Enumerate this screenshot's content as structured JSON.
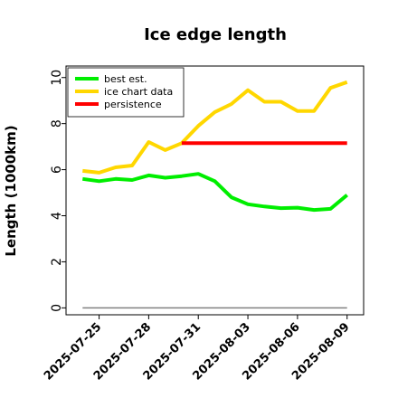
{
  "chart_data": {
    "type": "line",
    "title": "Ice edge length",
    "xlabel": "",
    "ylabel": "Length (1000km)",
    "x": [
      "2025-07-24",
      "2025-07-25",
      "2025-07-26",
      "2025-07-27",
      "2025-07-28",
      "2025-07-29",
      "2025-07-30",
      "2025-07-31",
      "2025-08-01",
      "2025-08-02",
      "2025-08-03",
      "2025-08-04",
      "2025-08-05",
      "2025-08-06",
      "2025-08-07",
      "2025-08-08",
      "2025-08-09"
    ],
    "x_ticks": [
      "2025-07-25",
      "2025-07-28",
      "2025-07-31",
      "2025-08-03",
      "2025-08-06",
      "2025-08-09"
    ],
    "y_ticks": [
      0,
      2,
      4,
      6,
      8,
      10
    ],
    "ylim": [
      -0.3,
      10.5
    ],
    "xlim": [
      "2025-07-23",
      "2025-08-10"
    ],
    "grid": false,
    "legend_position": "top-left",
    "series": [
      {
        "name": "best est.",
        "color": "#00ee00",
        "x": [
          "2025-07-24",
          "2025-07-25",
          "2025-07-26",
          "2025-07-27",
          "2025-07-28",
          "2025-07-29",
          "2025-07-30",
          "2025-07-31",
          "2025-08-01",
          "2025-08-02",
          "2025-08-03",
          "2025-08-04",
          "2025-08-05",
          "2025-08-06",
          "2025-08-07",
          "2025-08-08",
          "2025-08-09"
        ],
        "values": [
          5.6,
          5.5,
          5.6,
          5.55,
          5.75,
          5.65,
          5.72,
          5.82,
          5.5,
          4.8,
          4.5,
          4.4,
          4.33,
          4.35,
          4.25,
          4.3,
          4.9
        ]
      },
      {
        "name": "ice chart data",
        "color": "#ffd700",
        "x": [
          "2025-07-24",
          "2025-07-25",
          "2025-07-26",
          "2025-07-27",
          "2025-07-28",
          "2025-07-29",
          "2025-07-30",
          "2025-07-31",
          "2025-08-01",
          "2025-08-02",
          "2025-08-03",
          "2025-08-04",
          "2025-08-05",
          "2025-08-06",
          "2025-08-07",
          "2025-08-08",
          "2025-08-09"
        ],
        "values": [
          5.95,
          5.87,
          6.1,
          6.18,
          7.2,
          6.85,
          7.15,
          7.9,
          8.5,
          8.85,
          9.45,
          8.95,
          8.95,
          8.55,
          8.55,
          9.55,
          9.8
        ]
      },
      {
        "name": "persistence",
        "color": "#ff0000",
        "x": [
          "2025-07-30",
          "2025-08-09"
        ],
        "values": [
          7.15,
          7.15
        ]
      },
      {
        "name": "",
        "color": "#808080",
        "x": [
          "2025-07-24",
          "2025-08-09"
        ],
        "values": [
          0.0,
          0.0
        ]
      }
    ]
  }
}
